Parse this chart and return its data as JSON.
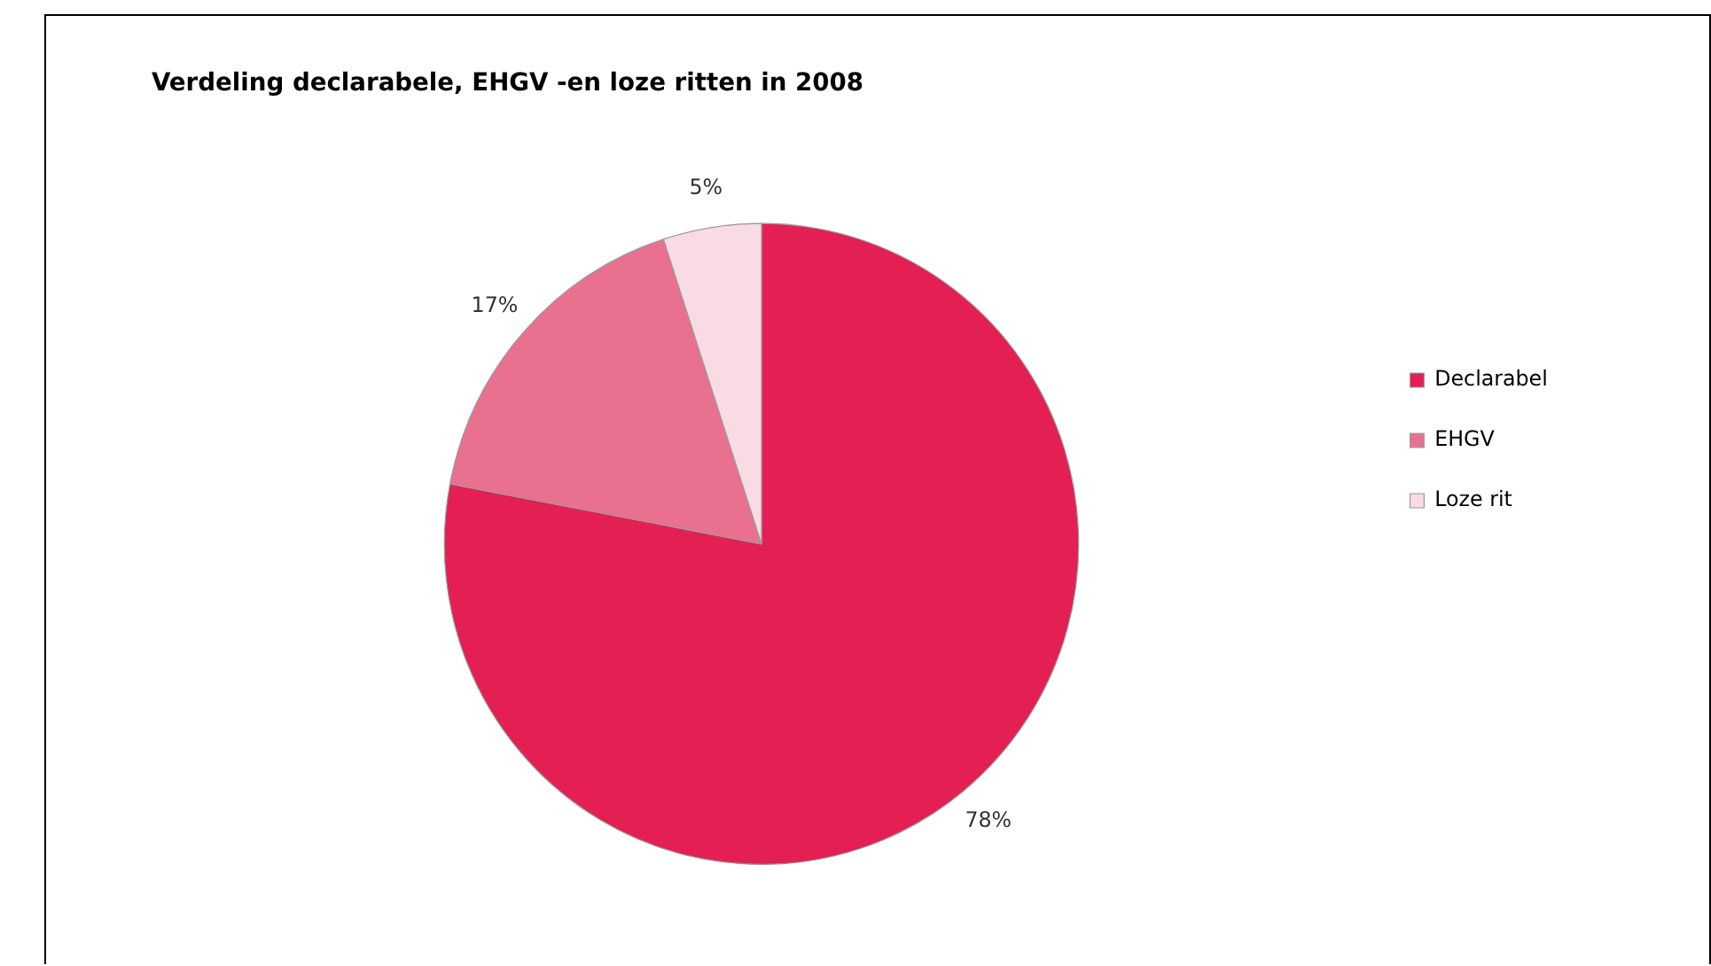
{
  "chart_data": {
    "type": "pie",
    "title": "Verdeling declarabele, EHGV -en loze ritten in 2008",
    "categories": [
      "Declarabel",
      "EHGV",
      "Loze rit"
    ],
    "values": [
      78,
      17,
      5
    ],
    "colors": [
      "#e31f53",
      "#ea7090",
      "#f9dbe3"
    ],
    "value_labels": [
      "78%",
      "17%",
      "5%"
    ],
    "legend": "right"
  }
}
